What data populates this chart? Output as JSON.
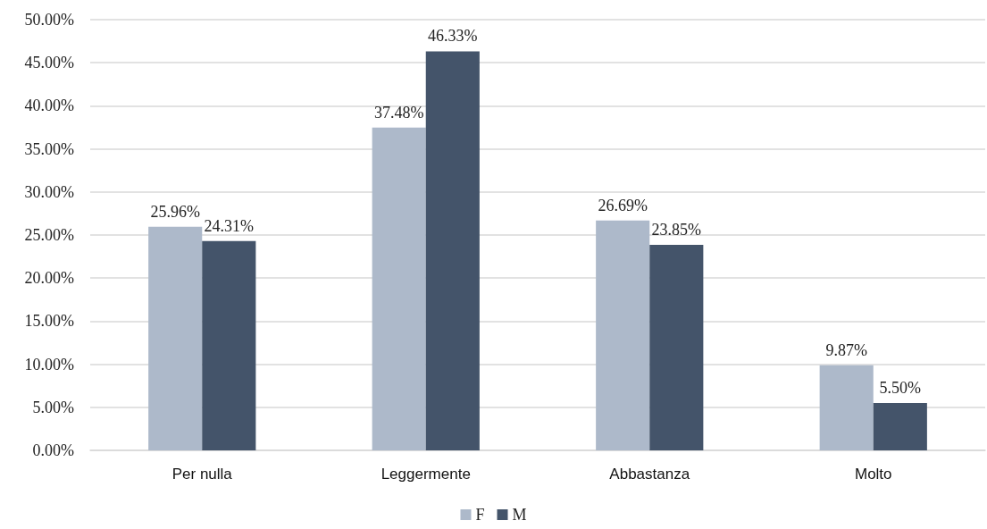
{
  "chart_data": {
    "type": "bar",
    "categories": [
      "Per nulla",
      "Leggermente",
      "Abbastanza",
      "Molto"
    ],
    "series": [
      {
        "name": "F",
        "color": "#adb9ca",
        "values": [
          25.96,
          37.48,
          26.69,
          9.87
        ],
        "value_labels": [
          "25.96%",
          "37.48%",
          "26.69%",
          "9.87%"
        ]
      },
      {
        "name": "M",
        "color": "#44546a",
        "values": [
          24.31,
          46.33,
          23.85,
          5.5
        ],
        "value_labels": [
          "24.31%",
          "46.33%",
          "23.85%",
          "5.50%"
        ]
      }
    ],
    "ylim": [
      0,
      50
    ],
    "yticks": [
      {
        "value": 0,
        "label": "0.00%"
      },
      {
        "value": 5,
        "label": "5.00%"
      },
      {
        "value": 10,
        "label": "10.00%"
      },
      {
        "value": 15,
        "label": "15.00%"
      },
      {
        "value": 20,
        "label": "20.00%"
      },
      {
        "value": 25,
        "label": "25.00%"
      },
      {
        "value": 30,
        "label": "30.00%"
      },
      {
        "value": 35,
        "label": "35.00%"
      },
      {
        "value": 40,
        "label": "40.00%"
      },
      {
        "value": 45,
        "label": "45.00%"
      },
      {
        "value": 50,
        "label": "50.00%"
      }
    ],
    "grid": "y",
    "legend": "bottom"
  }
}
